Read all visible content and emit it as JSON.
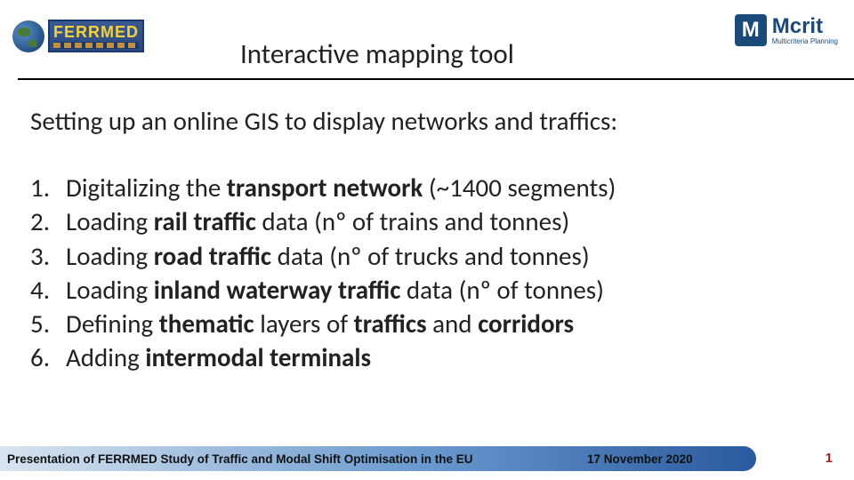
{
  "header": {
    "logo_left_text": "FERRMED",
    "title": "Interactive mapping tool",
    "logo_right_main": "Mcrit",
    "logo_right_sub": "Multicriteria Planning",
    "logo_right_box": "M"
  },
  "subtitle": "Setting up an online GIS to display networks and traffics:",
  "list": [
    {
      "num": "1.",
      "pre": "Digitalizing the ",
      "bold": "transport network",
      "post": " (~1400 segments)"
    },
    {
      "num": "2.",
      "pre": "Loading ",
      "bold": "rail traffic",
      "post": " data (nº of trains and tonnes)"
    },
    {
      "num": "3.",
      "pre": "Loading ",
      "bold": "road traffic",
      "post": " data (nº of trucks and tonnes)"
    },
    {
      "num": "4.",
      "pre": "Loading ",
      "bold": "inland waterway traffic",
      "post": " data (nº of tonnes)"
    },
    {
      "num": "5.",
      "pre": "Defining ",
      "bold": "thematic",
      "mid": " layers of ",
      "bold2": "traffics",
      "mid2": " and ",
      "bold3": "corridors",
      "post": ""
    },
    {
      "num": "6.",
      "pre": "Adding ",
      "bold": "intermodal terminals",
      "post": ""
    }
  ],
  "footer": {
    "left": "Presentation of FERRMED Study of Traffic and Modal Shift Optimisation in the EU",
    "date": "17 November 2020",
    "page": "1"
  },
  "colors": {
    "text": "#222222",
    "header_line": "#000000",
    "footer_gradient_start": "#d8e4f0",
    "footer_gradient_mid": "#6a9acf",
    "footer_gradient_end": "#2a5a9f",
    "page_num": "#a02020",
    "mcrit_blue": "#1a4a7a",
    "ferrmed_yellow": "#f4d040"
  },
  "fonts": {
    "title_size": 31,
    "body_size": 29,
    "footer_size": 13.5
  }
}
